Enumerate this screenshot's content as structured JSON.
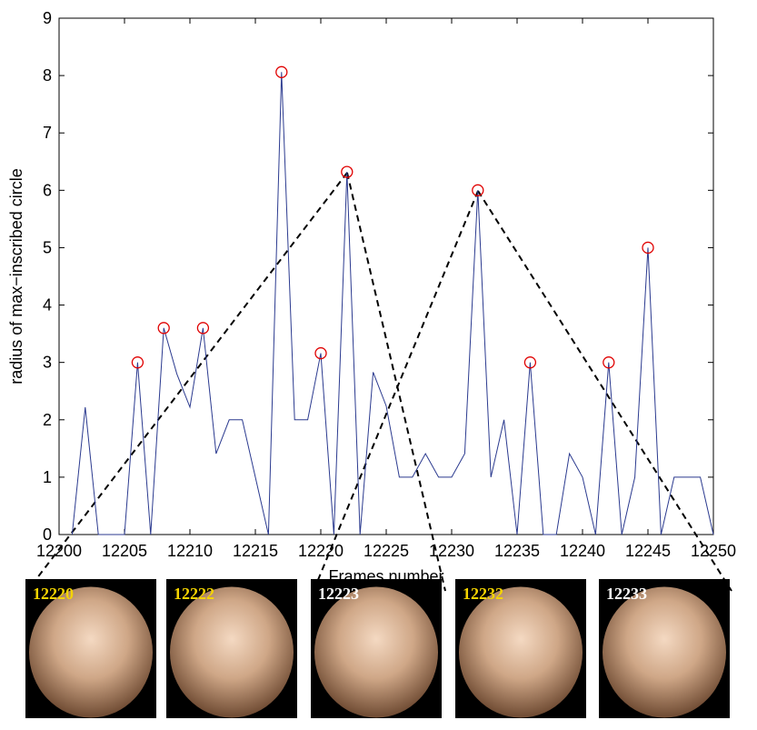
{
  "chart_data": {
    "type": "line",
    "xlabel": "Frames number",
    "ylabel": "radius of max−inscribed circle",
    "xlim": [
      12200,
      12250
    ],
    "ylim": [
      0,
      9
    ],
    "xticks": [
      12200,
      12205,
      12210,
      12215,
      12220,
      12225,
      12230,
      12235,
      12240,
      12245,
      12250
    ],
    "yticks": [
      0,
      1,
      2,
      3,
      4,
      5,
      6,
      7,
      8,
      9
    ],
    "series": [
      {
        "color": "#2b3a8f",
        "x": [
          12201,
          12202,
          12203,
          12204,
          12205,
          12206,
          12207,
          12208,
          12209,
          12210,
          12211,
          12212,
          12213,
          12214,
          12215,
          12216,
          12217,
          12218,
          12219,
          12220,
          12221,
          12222,
          12223,
          12224,
          12225,
          12226,
          12227,
          12228,
          12229,
          12230,
          12231,
          12232,
          12233,
          12234,
          12235,
          12236,
          12237,
          12238,
          12239,
          12240,
          12241,
          12242,
          12243,
          12244,
          12245,
          12246,
          12247,
          12248,
          12249,
          12250
        ],
        "values": [
          0,
          2.22,
          0,
          0,
          0,
          3,
          0,
          3.6,
          2.8,
          2.22,
          3.6,
          1.41,
          2,
          2,
          1,
          0,
          8.06,
          2,
          2,
          3.16,
          0,
          6.32,
          0,
          2.83,
          2.24,
          1,
          1,
          1.41,
          1,
          1,
          1.41,
          6,
          1,
          2,
          0,
          3,
          0,
          0,
          1.41,
          1,
          0,
          3,
          0,
          1,
          5,
          0,
          1,
          1,
          1,
          0
        ]
      },
      {
        "color": "#e00000",
        "marker": "circle",
        "x": [
          12206,
          12208,
          12211,
          12217,
          12220,
          12222,
          12232,
          12236,
          12242,
          12245
        ],
        "values": [
          3,
          3.6,
          3.6,
          8.06,
          3.16,
          6.32,
          6,
          3,
          3,
          5
        ]
      }
    ]
  },
  "thumbnails": [
    {
      "label": "12220",
      "color": "#f5d400"
    },
    {
      "label": "12222",
      "color": "#f5d400"
    },
    {
      "label": "12223",
      "color": "#ffffff"
    },
    {
      "label": "12232",
      "color": "#f5d400"
    },
    {
      "label": "12233",
      "color": "#ffffff"
    }
  ]
}
